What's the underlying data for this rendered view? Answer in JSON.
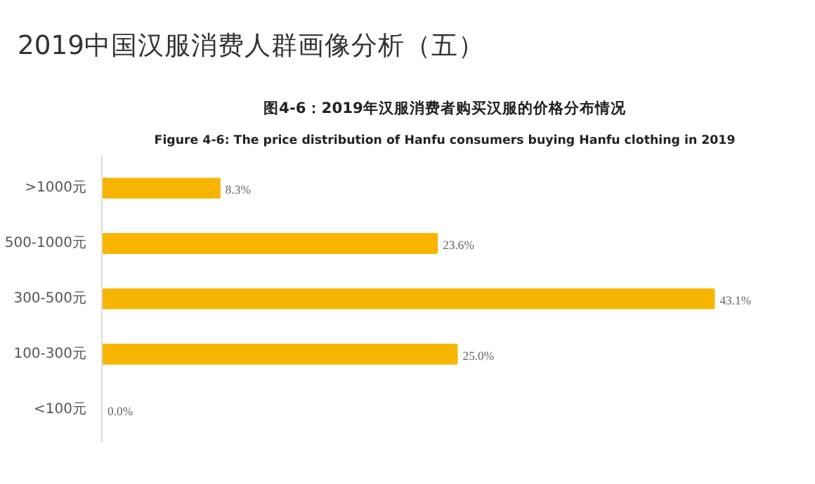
{
  "chart_data": {
    "type": "bar",
    "orientation": "horizontal",
    "title": "图4-6：2019年汉服消费者购买汉服的价格分布情况",
    "subtitle": "Figure 4-6: The price distribution of Hanfu consumers buying Hanfu clothing in 2019",
    "annotations": [
      "2019中国汉服消费人群画像分析（五）"
    ],
    "categories": [
      ">1000元",
      "500-1000元",
      "300-500元",
      "100-300元",
      "<100元"
    ],
    "values": [
      8.3,
      23.6,
      43.1,
      25.0,
      0.0
    ],
    "value_labels": [
      "8.3%",
      "23.6%",
      "43.1%",
      "25.0%",
      "0.0%"
    ],
    "color": "#f7b500",
    "grid": false
  }
}
